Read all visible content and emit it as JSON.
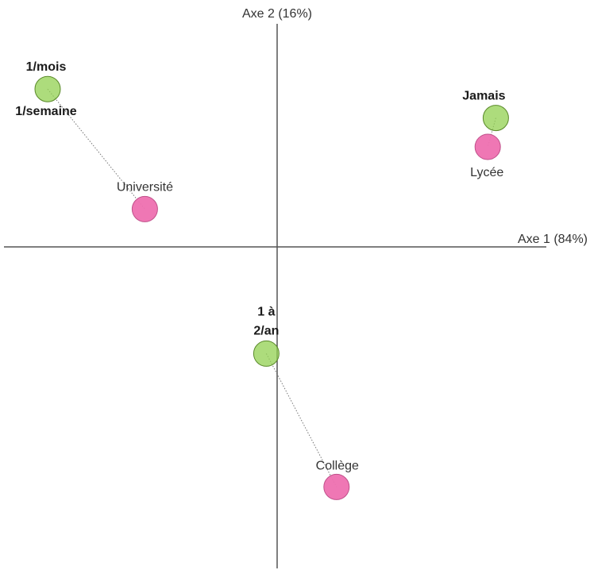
{
  "chart_data": {
    "type": "scatter",
    "title": "",
    "xlabel": "Axe 1 (84%)",
    "ylabel": "Axe 2 (16%)",
    "xlim": [
      -1.0,
      1.0
    ],
    "ylim": [
      -1.0,
      1.0
    ],
    "grid": false,
    "legend": "none",
    "series": [
      {
        "color": "#92d050",
        "points": [
          {
            "label_lines": [
              "1/mois",
              "1/semaine"
            ],
            "x": -0.85,
            "y": 0.71
          },
          {
            "label_lines": [
              "Jamais"
            ],
            "x": 0.81,
            "y": 0.58
          },
          {
            "label_lines": [
              "1 à",
              "2/an"
            ],
            "x": -0.04,
            "y": -0.48
          }
        ]
      },
      {
        "color": "#ee70b0",
        "points": [
          {
            "label_lines": [
              "Université"
            ],
            "x": -0.49,
            "y": 0.17
          },
          {
            "label_lines": [
              "Lycée"
            ],
            "x": 0.78,
            "y": 0.45
          },
          {
            "label_lines": [
              "Collège"
            ],
            "x": 0.22,
            "y": -1.08
          }
        ]
      }
    ],
    "links": [
      {
        "from": "1/mois",
        "to": "Université"
      },
      {
        "from": "Jamais",
        "to": "Lycée"
      },
      {
        "from": "1 à",
        "to": "Collège"
      }
    ]
  }
}
